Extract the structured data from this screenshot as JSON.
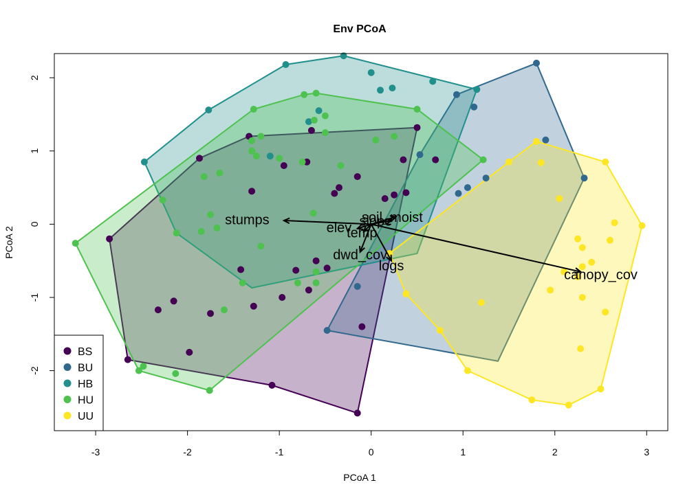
{
  "chart_data": {
    "type": "scatter",
    "title": "Env PCoA",
    "xlabel": "PCoA 1",
    "ylabel": "PCoA 2",
    "xlim": [
      -3.45,
      3.23
    ],
    "ylim": [
      -2.82,
      2.33
    ],
    "xticks": [
      -3,
      -2,
      -1,
      0,
      1,
      2,
      3
    ],
    "yticks": [
      -2,
      -1,
      0,
      1,
      2
    ],
    "legend_position": "bottom-left",
    "series": [
      {
        "name": "BS",
        "color": "#440154",
        "points": [
          [
            -2.85,
            -0.2
          ],
          [
            -2.65,
            -1.85
          ],
          [
            -2.15,
            -1.05
          ],
          [
            -2.32,
            -1.17
          ],
          [
            -1.98,
            -1.75
          ],
          [
            -1.75,
            -1.22
          ],
          [
            -1.28,
            -1.12
          ],
          [
            -1.08,
            -2.2
          ],
          [
            -0.15,
            -2.58
          ],
          [
            -0.1,
            -1.4
          ],
          [
            -0.68,
            -0.9
          ],
          [
            -0.97,
            -1.0
          ],
          [
            -0.82,
            -0.63
          ],
          [
            -1.42,
            -0.62
          ],
          [
            -0.48,
            -0.6
          ],
          [
            -0.6,
            -0.5
          ],
          [
            -1.3,
            0.45
          ],
          [
            -1.87,
            0.9
          ],
          [
            -0.4,
            0.42
          ],
          [
            -0.15,
            0.65
          ],
          [
            -0.95,
            0.8
          ],
          [
            -0.7,
            0.85
          ],
          [
            -0.35,
            0.5
          ],
          [
            -0.65,
            1.28
          ],
          [
            0.5,
            1.32
          ],
          [
            0.7,
            0.88
          ],
          [
            0.35,
            0.88
          ],
          [
            0.25,
            0.4
          ],
          [
            0.15,
            0.35
          ],
          [
            0.38,
            0.43
          ],
          [
            -1.33,
            1.2
          ]
        ]
      },
      {
        "name": "BU",
        "color": "#31688E",
        "points": [
          [
            1.8,
            2.2
          ],
          [
            1.9,
            1.15
          ],
          [
            1.12,
            1.6
          ],
          [
            0.93,
            1.77
          ],
          [
            1.25,
            0.63
          ],
          [
            0.95,
            0.42
          ],
          [
            1.05,
            0.5
          ],
          [
            2.32,
            0.63
          ],
          [
            -0.15,
            -0.85
          ],
          [
            -0.48,
            -1.45
          ],
          [
            0.53,
            0.95
          ]
        ]
      },
      {
        "name": "HB",
        "color": "#21908C",
        "points": [
          [
            -0.3,
            2.3
          ],
          [
            -0.93,
            2.18
          ],
          [
            -1.77,
            1.56
          ],
          [
            -2.47,
            0.85
          ],
          [
            0.0,
            2.07
          ],
          [
            0.1,
            1.83
          ],
          [
            0.23,
            1.86
          ],
          [
            0.67,
            1.95
          ],
          [
            1.15,
            1.84
          ],
          [
            -0.68,
            1.4
          ],
          [
            -0.57,
            1.55
          ],
          [
            -1.1,
            0.93
          ]
        ]
      },
      {
        "name": "HU",
        "color": "#4DC24F",
        "points": [
          [
            -3.22,
            -0.26
          ],
          [
            -2.53,
            -2.0
          ],
          [
            -2.48,
            -1.94
          ],
          [
            -2.13,
            -2.04
          ],
          [
            -1.76,
            -2.27
          ],
          [
            -1.6,
            -1.17
          ],
          [
            -1.4,
            -0.8
          ],
          [
            -1.2,
            -0.3
          ],
          [
            -0.8,
            -0.8
          ],
          [
            -0.6,
            -0.8
          ],
          [
            -0.6,
            -0.65
          ],
          [
            -2.12,
            -0.12
          ],
          [
            -1.85,
            -0.1
          ],
          [
            -1.68,
            -0.05
          ],
          [
            -1.75,
            0.13
          ],
          [
            -0.63,
            0.15
          ],
          [
            -2.27,
            0.33
          ],
          [
            -1.82,
            0.65
          ],
          [
            -1.65,
            0.7
          ],
          [
            -1.25,
            0.93
          ],
          [
            -1.0,
            0.9
          ],
          [
            -0.75,
            0.85
          ],
          [
            -0.33,
            0.8
          ],
          [
            -1.28,
            1.57
          ],
          [
            -0.73,
            1.77
          ],
          [
            -0.6,
            1.79
          ],
          [
            -0.5,
            1.48
          ],
          [
            -0.62,
            1.42
          ],
          [
            -0.5,
            1.25
          ],
          [
            -1.3,
            1.0
          ],
          [
            -1.3,
            1.14
          ],
          [
            -1.2,
            1.2
          ],
          [
            0.05,
            1.15
          ],
          [
            0.25,
            1.2
          ],
          [
            0.5,
            1.57
          ],
          [
            1.22,
            0.88
          ]
        ]
      },
      {
        "name": "UU",
        "color": "#FDE725",
        "points": [
          [
            1.5,
            0.85
          ],
          [
            1.85,
            0.84
          ],
          [
            1.8,
            1.13
          ],
          [
            2.55,
            0.85
          ],
          [
            2.05,
            0.35
          ],
          [
            2.95,
            -0.02
          ],
          [
            2.65,
            0.02
          ],
          [
            2.6,
            -0.22
          ],
          [
            2.25,
            -0.2
          ],
          [
            2.3,
            -0.32
          ],
          [
            2.3,
            -0.58
          ],
          [
            2.4,
            -0.52
          ],
          [
            2.1,
            -0.65
          ],
          [
            2.25,
            -0.72
          ],
          [
            1.95,
            -0.9
          ],
          [
            2.3,
            -1.0
          ],
          [
            2.55,
            -1.2
          ],
          [
            2.28,
            -1.7
          ],
          [
            2.5,
            -2.25
          ],
          [
            2.15,
            -2.47
          ],
          [
            1.75,
            -2.4
          ],
          [
            1.05,
            -2.0
          ],
          [
            0.75,
            -1.45
          ],
          [
            0.38,
            -0.95
          ],
          [
            0.2,
            -0.4
          ],
          [
            1.2,
            -1.07
          ]
        ]
      }
    ],
    "hulls": [
      {
        "name": "BS",
        "fill": "rgba(68,1,84,0.30)",
        "stroke": "#440154",
        "points": [
          [
            -2.85,
            -0.2
          ],
          [
            -2.65,
            -1.85
          ],
          [
            -1.08,
            -2.2
          ],
          [
            -0.15,
            -2.58
          ],
          [
            0.5,
            1.32
          ],
          [
            -1.33,
            1.2
          ],
          [
            -1.87,
            0.9
          ]
        ]
      },
      {
        "name": "BU",
        "fill": "rgba(49,104,142,0.30)",
        "stroke": "#31688E",
        "points": [
          [
            1.8,
            2.2
          ],
          [
            2.32,
            0.63
          ],
          [
            1.38,
            -1.87
          ],
          [
            -0.48,
            -1.45
          ],
          [
            0.53,
            0.95
          ],
          [
            0.93,
            1.77
          ]
        ]
      },
      {
        "name": "HB",
        "fill": "rgba(33,144,140,0.30)",
        "stroke": "#21908C",
        "points": [
          [
            -0.3,
            2.3
          ],
          [
            1.15,
            1.84
          ],
          [
            0.5,
            -0.4
          ],
          [
            -1.3,
            -0.87
          ],
          [
            -2.12,
            -0.12
          ],
          [
            -2.47,
            0.85
          ],
          [
            -1.77,
            1.56
          ],
          [
            -0.93,
            2.18
          ]
        ]
      },
      {
        "name": "HU",
        "fill": "rgba(77,194,79,0.30)",
        "stroke": "#4DC24F",
        "points": [
          [
            -0.6,
            1.79
          ],
          [
            0.5,
            1.57
          ],
          [
            1.22,
            0.88
          ],
          [
            -1.76,
            -2.27
          ],
          [
            -2.53,
            -2.0
          ],
          [
            -3.22,
            -0.26
          ],
          [
            -1.28,
            1.57
          ],
          [
            -0.73,
            1.77
          ]
        ]
      },
      {
        "name": "UU",
        "fill": "rgba(253,231,37,0.30)",
        "stroke": "#FDE725",
        "points": [
          [
            1.8,
            1.13
          ],
          [
            2.55,
            0.85
          ],
          [
            2.95,
            -0.02
          ],
          [
            2.5,
            -2.25
          ],
          [
            2.15,
            -2.47
          ],
          [
            1.75,
            -2.4
          ],
          [
            1.05,
            -2.0
          ],
          [
            0.75,
            -1.45
          ],
          [
            0.38,
            -0.95
          ],
          [
            0.2,
            -0.4
          ],
          [
            1.5,
            0.85
          ]
        ]
      }
    ],
    "arrows": [
      {
        "label": "stumps",
        "tip": [
          -0.95,
          0.05
        ],
        "label_pos": [
          -1.35,
          0.05
        ]
      },
      {
        "label": "soil_moist",
        "tip": [
          0.27,
          0.1
        ],
        "label_pos": [
          0.23,
          0.08
        ]
      },
      {
        "label": "slope",
        "tip": [
          0.22,
          0.05
        ],
        "label_pos": [
          0.05,
          0.03
        ]
      },
      {
        "label": "elev",
        "tip": [
          -0.15,
          -0.06
        ],
        "label_pos": [
          -0.35,
          -0.06
        ]
      },
      {
        "label": "temp",
        "tip": [
          -0.08,
          -0.1
        ],
        "label_pos": [
          -0.1,
          -0.13
        ]
      },
      {
        "label": "dwd_cov",
        "tip": [
          -0.12,
          -0.38
        ],
        "label_pos": [
          -0.12,
          -0.43
        ]
      },
      {
        "label": "logs",
        "tip": [
          0.22,
          -0.5
        ],
        "label_pos": [
          0.22,
          -0.58
        ]
      },
      {
        "label": "canopy_cov",
        "tip": [
          2.28,
          -0.65
        ],
        "label_pos": [
          2.5,
          -0.7
        ]
      }
    ]
  }
}
